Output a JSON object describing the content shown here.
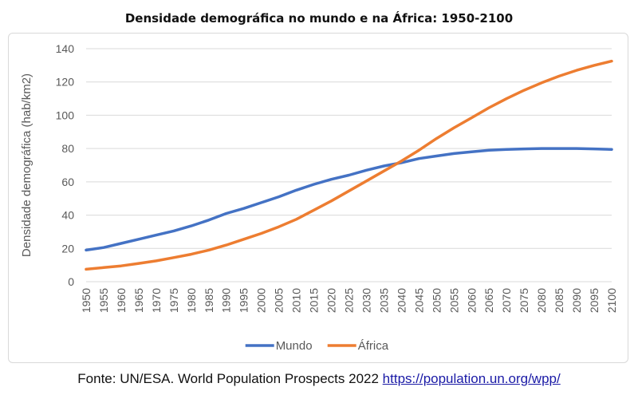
{
  "chart_data": {
    "type": "line",
    "title": "Densidade demográfica no mundo e na África: 1950-2100",
    "xlabel": "",
    "ylabel": "Densidade demográfica (hab/km2)",
    "ylim": [
      0,
      140
    ],
    "yticks": [
      "0",
      "20",
      "40",
      "60",
      "80",
      "100",
      "120",
      "140"
    ],
    "x": [
      1950,
      1955,
      1960,
      1965,
      1970,
      1975,
      1980,
      1985,
      1990,
      1995,
      2000,
      2005,
      2010,
      2015,
      2020,
      2025,
      2030,
      2035,
      2040,
      2045,
      2050,
      2055,
      2060,
      2065,
      2070,
      2075,
      2080,
      2085,
      2090,
      2095,
      2100
    ],
    "xticks": [
      "1950",
      "1955",
      "1960",
      "1965",
      "1970",
      "1975",
      "1980",
      "1985",
      "1990",
      "1995",
      "2000",
      "2005",
      "2010",
      "2015",
      "2020",
      "2025",
      "2030",
      "2035",
      "2040",
      "2045",
      "2050",
      "2055",
      "2060",
      "2065",
      "2070",
      "2075",
      "2080",
      "2085",
      "2090",
      "2095",
      "2100"
    ],
    "series": [
      {
        "name": "Mundo",
        "color": "#4472C4",
        "values": [
          19,
          20.5,
          23,
          25.5,
          28,
          30.5,
          33.5,
          37,
          41,
          44,
          47.5,
          51,
          55,
          58.5,
          61.5,
          64,
          67,
          69.5,
          71.5,
          74,
          75.5,
          77,
          78,
          79,
          79.5,
          79.8,
          80,
          80,
          80,
          79.8,
          79.5
        ]
      },
      {
        "name": "África",
        "color": "#ED7D31",
        "values": [
          7.5,
          8.5,
          9.5,
          11,
          12.5,
          14.5,
          16.5,
          19,
          22,
          25.5,
          29,
          33,
          37.5,
          43,
          48.5,
          54.5,
          60.5,
          66.5,
          72.5,
          79,
          86,
          92.5,
          98.5,
          104.5,
          110,
          115,
          119.5,
          123.5,
          127,
          130,
          132.5
        ]
      }
    ],
    "grid": true,
    "legend_position": "bottom"
  },
  "source": {
    "prefix": "Fonte: UN/ESA. World Population Prospects 2022 ",
    "link_text": "https://population.un.org/wpp/"
  }
}
